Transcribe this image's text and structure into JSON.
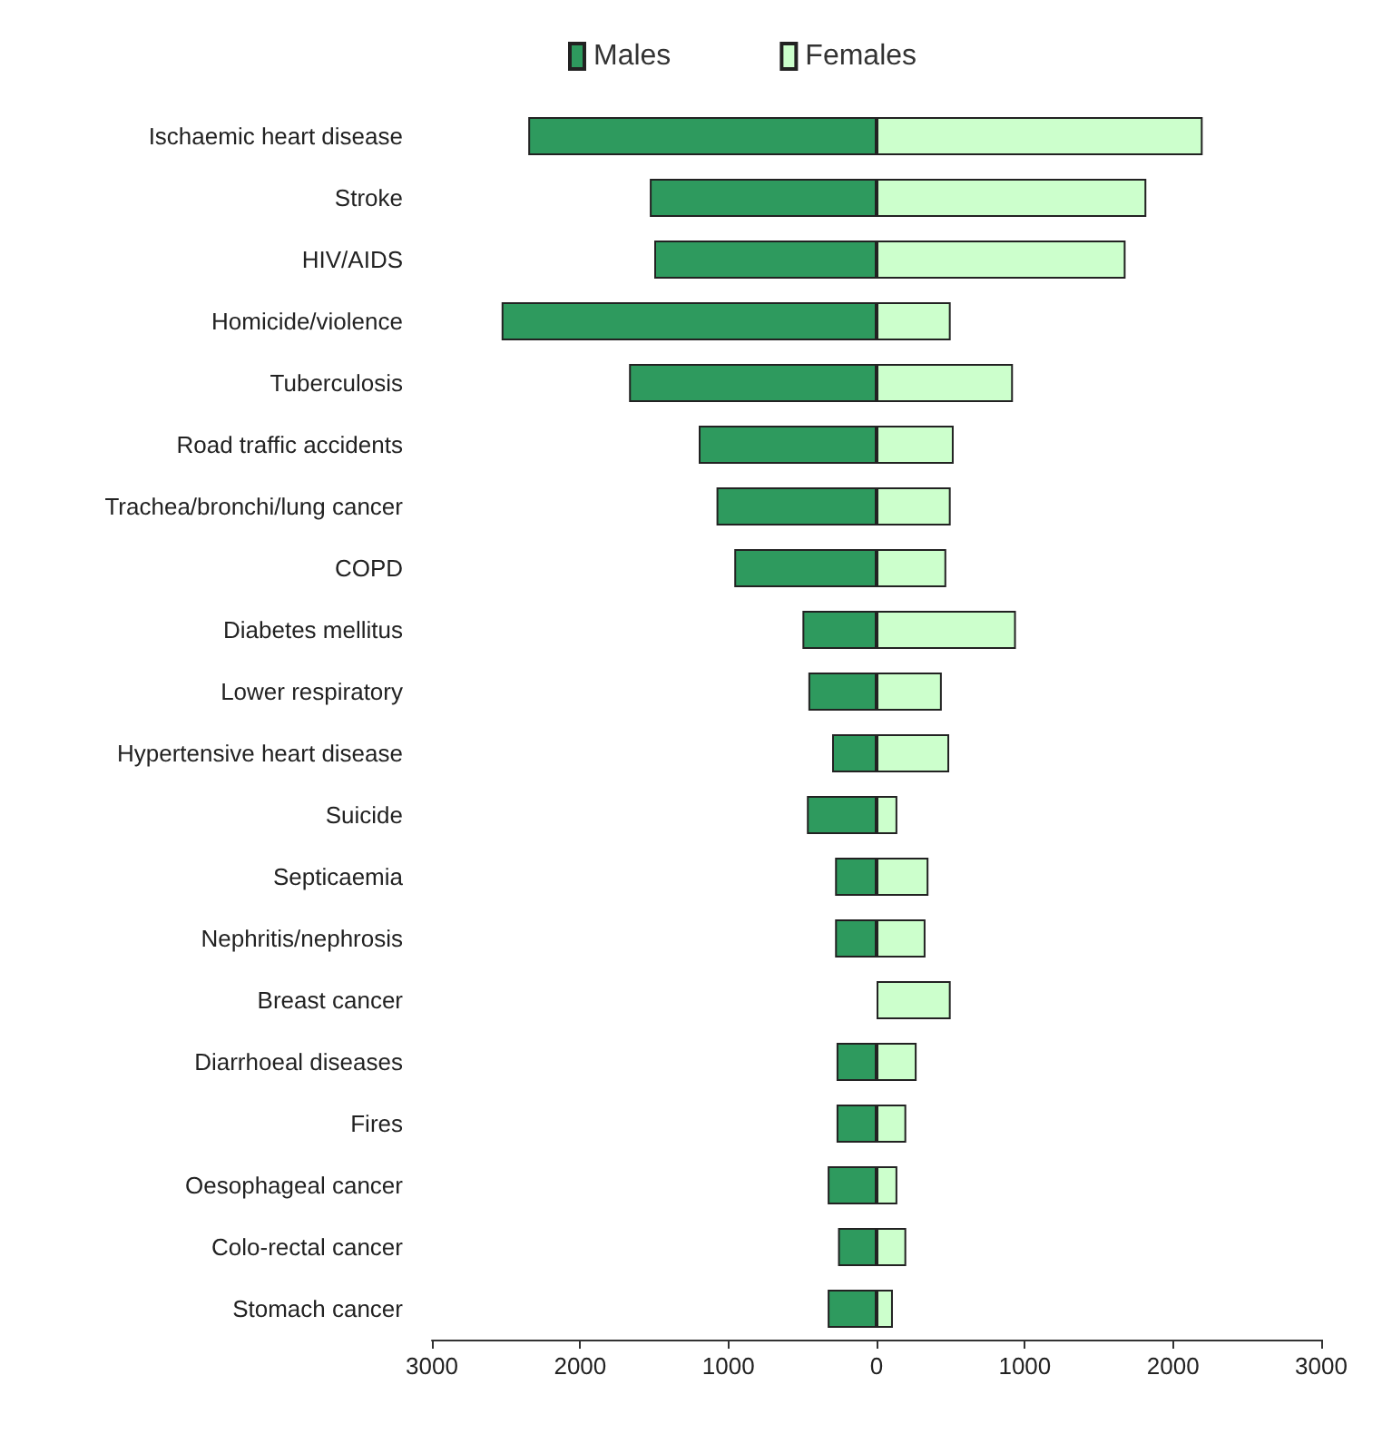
{
  "chart_data": {
    "type": "bar",
    "orientation": "horizontal",
    "categories": [
      "Ischaemic heart disease",
      "Stroke",
      "HIV/AIDS",
      "Homicide/violence",
      "Tuberculosis",
      "Road traffic accidents",
      "Trachea/bronchi/lung cancer",
      "COPD",
      "Diabetes mellitus",
      "Lower respiratory",
      "Hypertensive heart disease",
      "Suicide",
      "Septicaemia",
      "Nephritis/nephrosis",
      "Breast cancer",
      "Diarrhoeal diseases",
      "Fires",
      "Oesophageal cancer",
      "Colo-rectal cancer",
      "Stomach cancer"
    ],
    "series": [
      {
        "name": "Males",
        "color": "#2e9a5e",
        "values": [
          -2350,
          -1530,
          -1500,
          -2530,
          -1670,
          -1200,
          -1080,
          -960,
          -500,
          -460,
          -300,
          -470,
          -280,
          -280,
          null,
          -270,
          -270,
          -330,
          -260,
          -330
        ]
      },
      {
        "name": "Females",
        "color": "#ccffcc",
        "values": [
          2200,
          1820,
          1680,
          500,
          920,
          520,
          500,
          470,
          940,
          440,
          490,
          140,
          350,
          330,
          500,
          270,
          200,
          140,
          200,
          110
        ]
      }
    ],
    "xlim": [
      -3000,
      3000
    ],
    "xticks": [
      {
        "value": -3000,
        "label": "3000"
      },
      {
        "value": -2000,
        "label": "2000"
      },
      {
        "value": -1000,
        "label": "1000"
      },
      0,
      1000,
      2000,
      3000
    ],
    "legend": "top",
    "grid": false,
    "stacked": true
  }
}
